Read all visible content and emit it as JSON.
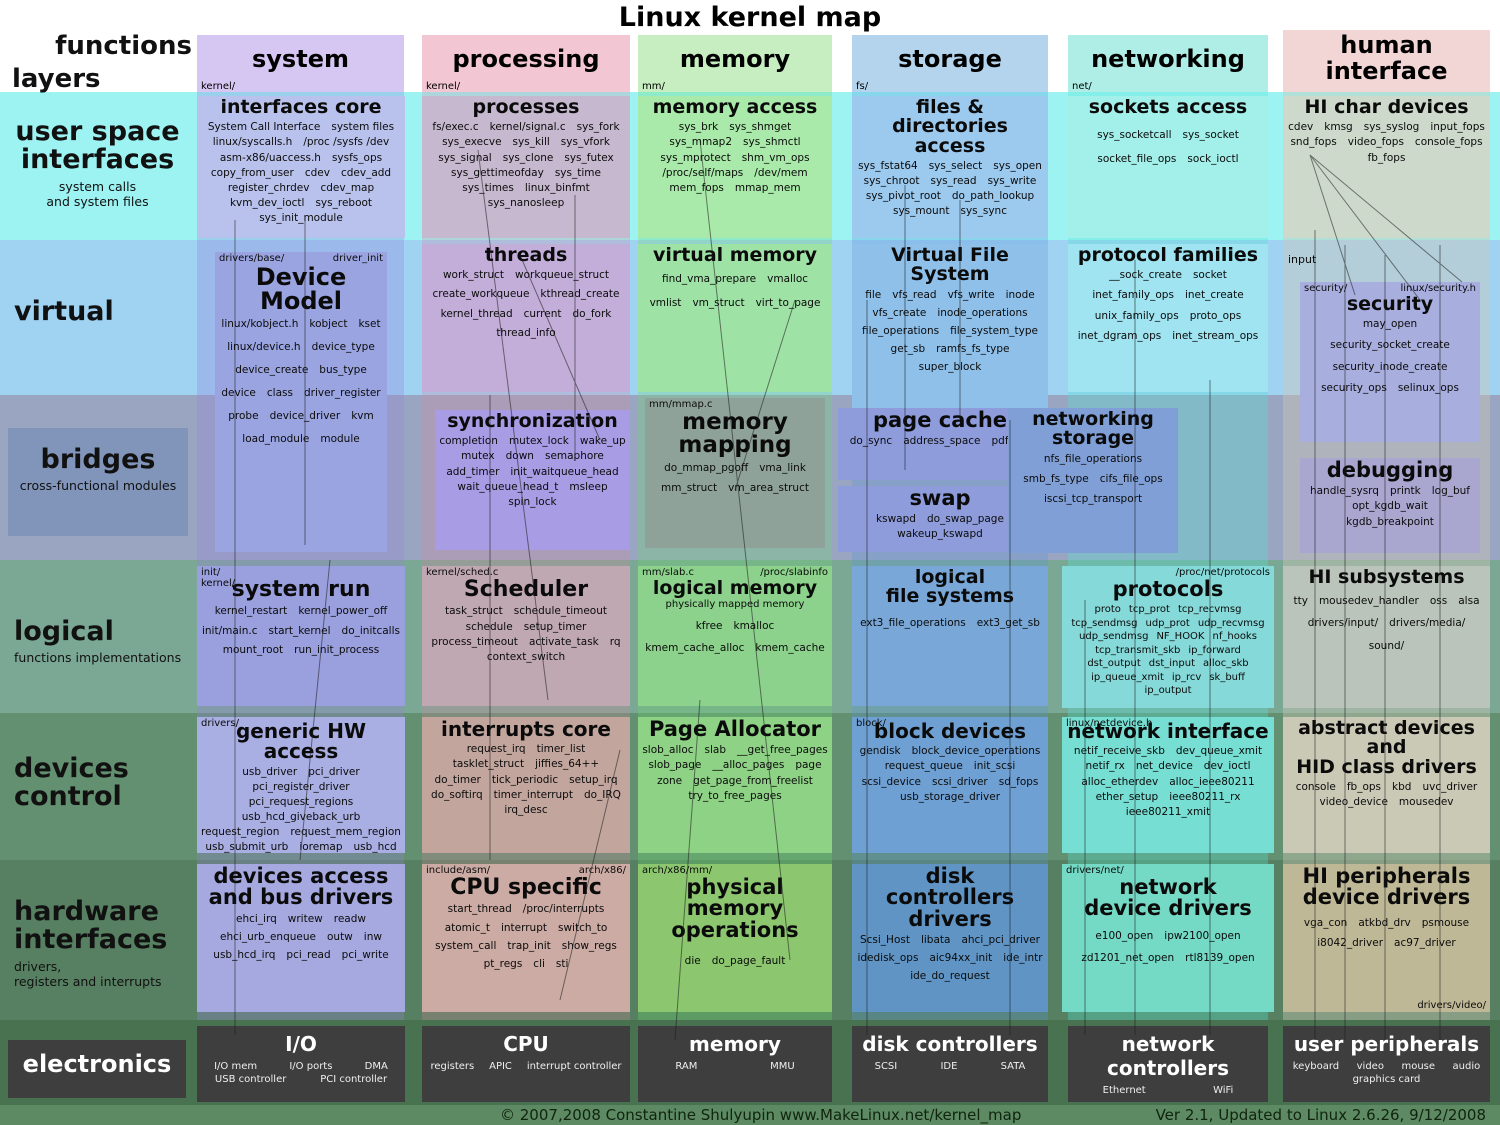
{
  "title": "Linux kernel map",
  "corner": {
    "functions": "functions",
    "layers": "layers"
  },
  "columns": [
    {
      "label": "system",
      "src": "kernel/"
    },
    {
      "label": "processing",
      "src": "kernel/"
    },
    {
      "label": "memory",
      "src": "mm/"
    },
    {
      "label": "storage",
      "src": "fs/"
    },
    {
      "label": "networking",
      "src": "net/"
    },
    {
      "label": "human interface",
      "src": ""
    }
  ],
  "layers": [
    {
      "label": "user space\ninterfaces",
      "caption": "system calls\nand system files"
    },
    {
      "label": "virtual",
      "caption": ""
    },
    {
      "label": "bridges",
      "caption": "cross-functional modules"
    },
    {
      "label": "logical",
      "caption": "functions implementations"
    },
    {
      "label": "devices\ncontrol",
      "caption": ""
    },
    {
      "label": "hardware\ninterfaces",
      "caption": "drivers,\nregisters and interrupts"
    },
    {
      "label": "electronics",
      "caption": ""
    }
  ],
  "misc": {
    "input": "input"
  },
  "cells": {
    "interfaces_core": {
      "title": "interfaces core",
      "items": [
        "System Call Interface",
        "system files",
        "linux/syscalls.h",
        "/proc /sysfs /dev",
        "asm-x86/uaccess.h",
        "sysfs_ops",
        "copy_from_user",
        "cdev",
        "cdev_add",
        "register_chrdev",
        "cdev_map",
        "kvm_dev_ioctl",
        "sys_reboot",
        "sys_init_module"
      ]
    },
    "processes": {
      "title": "processes",
      "items": [
        "fs/exec.c",
        "kernel/signal.c",
        "sys_fork",
        "sys_execve",
        "sys_kill",
        "sys_vfork",
        "sys_signal",
        "sys_clone",
        "sys_futex",
        "sys_gettimeofday",
        "sys_time",
        "sys_times",
        "linux_binfmt",
        "sys_nanosleep"
      ]
    },
    "memory_access": {
      "title": "memory access",
      "items": [
        "sys_brk",
        "sys_shmget",
        "sys_mmap2",
        "sys_shmctl",
        "sys_mprotect",
        "shm_vm_ops",
        "/proc/self/maps",
        "/dev/mem",
        "mem_fops",
        "mmap_mem"
      ]
    },
    "files_dirs": {
      "title": "files & directories access",
      "items": [
        "sys_fstat64",
        "sys_select",
        "sys_open",
        "sys_chroot",
        "sys_read",
        "sys_write",
        "sys_pivot_root",
        "do_path_lookup",
        "sys_mount",
        "sys_sync"
      ]
    },
    "sockets_access": {
      "title": "sockets access",
      "items": [
        "sys_socketcall",
        "sys_socket",
        "socket_file_ops",
        "sock_ioctl"
      ]
    },
    "hi_char": {
      "title": "HI char devices",
      "items": [
        "cdev",
        "kmsg",
        "sys_syslog",
        "input_fops",
        "snd_fops",
        "video_fops",
        "console_fops",
        "fb_fops"
      ]
    },
    "device_model": {
      "title": "Device Model",
      "src_l": "drivers/base/",
      "src_r": "driver_init",
      "items": [
        "linux/kobject.h",
        "kobject",
        "kset",
        "linux/device.h",
        "device_type",
        "device_create",
        "bus_type",
        "device",
        "class",
        "driver_register",
        "probe",
        "device_driver",
        "kvm",
        "load_module",
        "module"
      ]
    },
    "threads": {
      "title": "threads",
      "items": [
        "work_struct",
        "workqueue_struct",
        "create_workqueue",
        "kthread_create",
        "kernel_thread",
        "current",
        "do_fork",
        "thread_info"
      ]
    },
    "virtual_memory": {
      "title": "virtual memory",
      "items": [
        "find_vma_prepare",
        "vmalloc",
        "vmlist",
        "vm_struct",
        "virt_to_page"
      ]
    },
    "vfs": {
      "title": "Virtual File System",
      "items": [
        "file",
        "vfs_read",
        "vfs_write",
        "inode",
        "vfs_create",
        "inode_operations",
        "file_operations",
        "file_system_type",
        "get_sb",
        "ramfs_fs_type",
        "super_block"
      ]
    },
    "protocol_families": {
      "title": "protocol families",
      "items": [
        "__sock_create",
        "socket",
        "inet_family_ops",
        "inet_create",
        "unix_family_ops",
        "proto_ops",
        "inet_dgram_ops",
        "inet_stream_ops"
      ]
    },
    "security": {
      "title": "security",
      "src_l": "security/",
      "src_r": "linux/security.h",
      "items": [
        "may_open",
        "security_socket_create",
        "security_inode_create",
        "security_ops",
        "selinux_ops"
      ]
    },
    "synchronization": {
      "title": "synchronization",
      "items": [
        "completion",
        "mutex_lock",
        "wake_up",
        "mutex",
        "down",
        "semaphore",
        "add_timer",
        "init_waitqueue_head",
        "wait_queue_head_t",
        "msleep",
        "spin_lock"
      ]
    },
    "memory_mapping": {
      "title": "memory mapping",
      "src_l": "mm/mmap.c",
      "items": [
        "do_mmap_pgoff",
        "vma_link",
        "mm_struct",
        "vm_area_struct"
      ]
    },
    "page_cache": {
      "title": "page cache",
      "items": [
        "do_sync",
        "address_space",
        "pdflush"
      ]
    },
    "swap": {
      "title": "swap",
      "items": [
        "kswapd",
        "do_swap_page",
        "wakeup_kswapd"
      ]
    },
    "networking_storage": {
      "title": "networking storage",
      "items": [
        "nfs_file_operations",
        "smb_fs_type",
        "cifs_file_ops",
        "iscsi_tcp_transport"
      ]
    },
    "debugging": {
      "title": "debugging",
      "items": [
        "handle_sysrq",
        "printk",
        "log_buf",
        "opt_kgdb_wait",
        "kgdb_breakpoint"
      ]
    },
    "system_run": {
      "title": "system run",
      "src_l": "init/\nkernel/",
      "items": [
        "kernel_restart",
        "kernel_power_off",
        "init/main.c",
        "start_kernel",
        "do_initcalls",
        "mount_root",
        "run_init_process"
      ]
    },
    "scheduler": {
      "title": "Scheduler",
      "src_l": "kernel/sched.c",
      "items": [
        "task_struct",
        "schedule_timeout",
        "schedule",
        "setup_timer",
        "process_timeout",
        "activate_task",
        "rq",
        "context_switch"
      ]
    },
    "logical_memory": {
      "title": "logical memory",
      "src_l": "mm/slab.c",
      "src_r": "/proc/slabinfo",
      "caption": "physically mapped memory",
      "items": [
        "kfree",
        "kmalloc",
        "kmem_cache_alloc",
        "kmem_cache"
      ]
    },
    "logical_fs": {
      "title": "logical\nfile systems",
      "items": [
        "ext3_file_operations",
        "ext3_get_sb"
      ]
    },
    "protocols": {
      "title": "protocols",
      "src_r": "/proc/net/protocols",
      "items": [
        "proto",
        "tcp_prot",
        "tcp_recvmsg",
        "tcp_sendmsg",
        "udp_prot",
        "udp_recvmsg",
        "udp_sendmsg",
        "NF_HOOK",
        "nf_hooks",
        "tcp_transmit_skb",
        "ip_forward",
        "dst_output",
        "dst_input",
        "alloc_skb",
        "ip_queue_xmit",
        "ip_rcv",
        "sk_buff",
        "ip_output"
      ]
    },
    "hi_subsystems": {
      "title": "HI subsystems",
      "items": [
        "tty",
        "mousedev_handler",
        "oss",
        "alsa",
        "drivers/input/",
        "drivers/media/",
        "sound/"
      ]
    },
    "generic_hw": {
      "title": "generic HW access",
      "src_l": "drivers/",
      "items": [
        "usb_driver",
        "pci_driver",
        "pci_register_driver",
        "pci_request_regions",
        "usb_hcd_giveback_urb",
        "request_region",
        "request_mem_region",
        "usb_submit_urb",
        "ioremap",
        "usb_hcd"
      ]
    },
    "interrupts_core": {
      "title": "interrupts core",
      "items": [
        "request_irq",
        "timer_list",
        "tasklet_struct",
        "jiffies_64++",
        "do_timer",
        "tick_periodic",
        "setup_irq",
        "do_softirq",
        "timer_interrupt",
        "do_IRQ",
        "irq_desc"
      ]
    },
    "page_allocator": {
      "title": "Page Allocator",
      "items": [
        "slob_alloc",
        "slab",
        "__get_free_pages",
        "slob_page",
        "__alloc_pages",
        "page",
        "zone",
        "get_page_from_freelist",
        "try_to_free_pages"
      ]
    },
    "block_devices": {
      "title": "block devices",
      "src_l": "block/",
      "items": [
        "gendisk",
        "block_device_operations",
        "request_queue",
        "init_scsi",
        "scsi_device",
        "scsi_driver",
        "sd_fops",
        "usb_storage_driver"
      ]
    },
    "network_interface": {
      "title": "network interface",
      "src_l": "linux/netdevice.h",
      "items": [
        "netif_receive_skb",
        "dev_queue_xmit",
        "netif_rx",
        "net_device",
        "dev_ioctl",
        "alloc_etherdev",
        "alloc_ieee80211",
        "ether_setup",
        "ieee80211_rx",
        "ieee80211_xmit"
      ]
    },
    "abstract_devices": {
      "title": "abstract devices\nand\nHID class drivers",
      "items": [
        "console",
        "fb_ops",
        "kbd",
        "uvc_driver",
        "video_device",
        "mousedev"
      ]
    },
    "devices_access": {
      "title": "devices access\nand bus drivers",
      "items": [
        "ehci_irq",
        "writew",
        "readw",
        "ehci_urb_enqueue",
        "outw",
        "inw",
        "usb_hcd_irq",
        "pci_read",
        "pci_write"
      ]
    },
    "cpu_specific": {
      "title": "CPU specific",
      "src_l": "include/asm/",
      "src_r": "arch/x86/",
      "items": [
        "start_thread",
        "/proc/interrupts",
        "atomic_t",
        "interrupt",
        "switch_to",
        "system_call",
        "trap_init",
        "show_regs",
        "pt_regs",
        "cli",
        "sti"
      ]
    },
    "physical_memory": {
      "title": "physical memory\noperations",
      "src_l": "arch/x86/mm/",
      "items": [
        "die",
        "do_page_fault"
      ]
    },
    "disk_drivers": {
      "title": "disk\ncontrollers drivers",
      "items": [
        "Scsi_Host",
        "libata",
        "ahci_pci_driver",
        "idedisk_ops",
        "aic94xx_init",
        "ide_intr",
        "ide_do_request"
      ]
    },
    "net_drivers": {
      "title": "network\ndevice drivers",
      "src_l": "drivers/net/",
      "items": [
        "e100_open",
        "ipw2100_open",
        "zd1201_net_open",
        "rtl8139_open"
      ]
    },
    "hi_peripherals": {
      "title": "HI peripherals\ndevice drivers",
      "src_br": "drivers/video/",
      "items": [
        "vga_con",
        "atkbd_drv",
        "psmouse",
        "i8042_driver",
        "ac97_driver"
      ]
    },
    "io": {
      "title": "I/O",
      "items": [
        "I/O mem",
        "I/O ports",
        "DMA",
        "USB controller",
        "PCI controller"
      ]
    },
    "cpu": {
      "title": "CPU",
      "items": [
        "registers",
        "APIC",
        "interrupt controller"
      ]
    },
    "memory_hw": {
      "title": "memory",
      "items": [
        "RAM",
        "MMU"
      ]
    },
    "disk_controllers": {
      "title": "disk controllers",
      "items": [
        "SCSI",
        "IDE",
        "SATA"
      ]
    },
    "network_controllers": {
      "title": "network controllers",
      "items": [
        "Ethernet",
        "WiFi"
      ]
    },
    "user_peripherals": {
      "title": "user peripherals",
      "items": [
        "keyboard",
        "video",
        "mouse",
        "audio",
        "graphics card"
      ]
    }
  },
  "footer": {
    "copyright": "© 2007,2008 Constantine Shulyupin www.MakeLinux.net/kernel_map",
    "version": "Ver 2.1, Updated to Linux 2.6.26, 9/12/2008"
  }
}
